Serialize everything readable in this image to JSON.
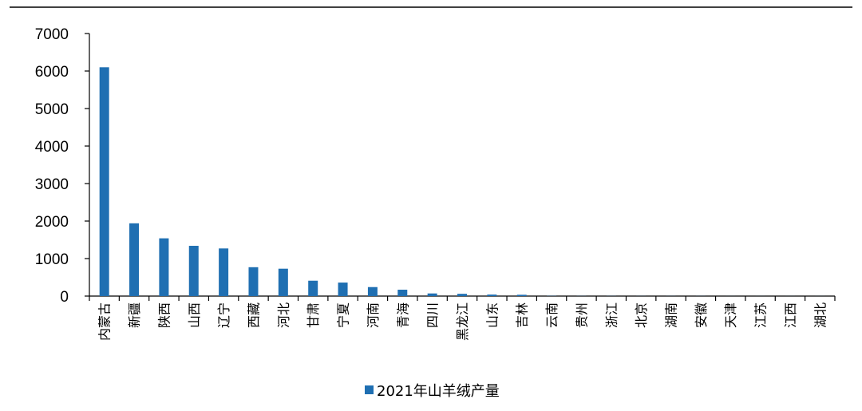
{
  "chart_data": {
    "type": "bar",
    "categories": [
      "内蒙古",
      "新疆",
      "陕西",
      "山西",
      "辽宁",
      "西藏",
      "河北",
      "甘肃",
      "宁夏",
      "河南",
      "青海",
      "四川",
      "黑龙江",
      "山东",
      "吉林",
      "云南",
      "贵州",
      "浙江",
      "北京",
      "湖南",
      "安徽",
      "天津",
      "江苏",
      "江西",
      "湖北"
    ],
    "series": [
      {
        "name": "2021年山羊绒产量",
        "values": [
          6100,
          1940,
          1540,
          1340,
          1270,
          770,
          730,
          410,
          360,
          240,
          170,
          70,
          60,
          40,
          35,
          5,
          3,
          3,
          2,
          2,
          2,
          1,
          1,
          1,
          1
        ]
      }
    ],
    "ylim": [
      0,
      7000
    ],
    "yticks": [
      0,
      1000,
      2000,
      3000,
      4000,
      5000,
      6000,
      7000
    ],
    "xlabel": "",
    "ylabel": "",
    "legend_position": "bottom-center",
    "grid": false,
    "colors": {
      "bar": "#1f6fb2",
      "axis": "#000000"
    }
  }
}
